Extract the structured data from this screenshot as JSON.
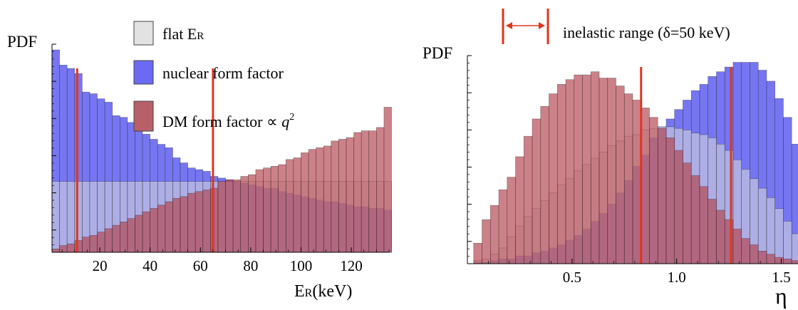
{
  "chart_data": [
    {
      "type": "bar",
      "panel": "left",
      "ylabel": "PDF",
      "xlabel": "E",
      "xlabel_sub": "R",
      "xlabel_unit": "(keV)",
      "xlim": [
        1,
        135
      ],
      "xticks": [
        20,
        40,
        60,
        80,
        100,
        120
      ],
      "ylim": [
        0,
        1.2
      ],
      "bin_width": 3,
      "bins_start": 1,
      "legend": {
        "placement": "top-center",
        "entries": [
          {
            "key": "flat",
            "label": "flat E",
            "sub": "R",
            "sup": "",
            "color": "#e2e2e2"
          },
          {
            "key": "nuclear",
            "label": "nuclear form factor",
            "sub": "",
            "sup": "",
            "color": "#6a6af5"
          },
          {
            "key": "dm",
            "label": "DM form factor ∝ ",
            "var": "q",
            "sup": "2",
            "sub": "",
            "color": "#b86068"
          }
        ]
      },
      "vlines": [
        11,
        65
      ],
      "series": [
        {
          "key": "flat",
          "values": [
            0.42,
            0.42,
            0.42,
            0.42,
            0.42,
            0.42,
            0.42,
            0.42,
            0.42,
            0.42,
            0.42,
            0.42,
            0.42,
            0.42,
            0.42,
            0.42,
            0.42,
            0.42,
            0.42,
            0.42,
            0.42,
            0.42,
            0.42,
            0.42,
            0.42,
            0.42,
            0.42,
            0.42,
            0.42,
            0.42,
            0.42,
            0.42,
            0.42,
            0.42,
            0.42,
            0.42,
            0.42,
            0.42,
            0.42,
            0.42,
            0.42,
            0.42,
            0.42,
            0.42,
            0.42
          ]
        },
        {
          "key": "nuclear",
          "values": [
            1.2,
            1.11,
            1.09,
            1.06,
            0.95,
            0.94,
            0.91,
            0.89,
            0.81,
            0.8,
            0.77,
            0.73,
            0.7,
            0.67,
            0.64,
            0.62,
            0.56,
            0.53,
            0.5,
            0.49,
            0.48,
            0.45,
            0.44,
            0.43,
            0.42,
            0.41,
            0.4,
            0.39,
            0.38,
            0.38,
            0.36,
            0.35,
            0.34,
            0.33,
            0.32,
            0.31,
            0.3,
            0.3,
            0.29,
            0.28,
            0.27,
            0.27,
            0.26,
            0.26,
            0.25
          ]
        },
        {
          "key": "dm",
          "values": [
            0.02,
            0.04,
            0.05,
            0.07,
            0.09,
            0.1,
            0.12,
            0.14,
            0.16,
            0.18,
            0.2,
            0.22,
            0.24,
            0.26,
            0.28,
            0.3,
            0.32,
            0.33,
            0.35,
            0.36,
            0.37,
            0.38,
            0.42,
            0.43,
            0.43,
            0.45,
            0.46,
            0.49,
            0.5,
            0.51,
            0.52,
            0.55,
            0.56,
            0.59,
            0.61,
            0.62,
            0.63,
            0.66,
            0.67,
            0.68,
            0.71,
            0.72,
            0.72,
            0.74,
            0.86
          ]
        }
      ]
    },
    {
      "type": "bar",
      "panel": "right",
      "ylabel": "PDF",
      "xlabel": "η",
      "xlim": [
        0,
        1.58
      ],
      "xticks": [
        0.5,
        1.0,
        1.5
      ],
      "xtick_labels": [
        "0.5",
        "1.0",
        "1.5"
      ],
      "ylim": [
        0,
        1.35
      ],
      "bin_width": 0.04,
      "bins_start": 0.03,
      "annotation": "inelastic range (δ=50 keV)",
      "inelastic_range": [
        0.17,
        0.38
      ],
      "vlines": [
        0.83,
        1.26
      ],
      "series": [
        {
          "key": "flat",
          "values": [
            0.02,
            0.03,
            0.06,
            0.1,
            0.17,
            0.24,
            0.3,
            0.35,
            0.4,
            0.45,
            0.5,
            0.54,
            0.59,
            0.63,
            0.67,
            0.71,
            0.75,
            0.78,
            0.81,
            0.82,
            0.85,
            0.86,
            0.87,
            0.87,
            0.86,
            0.85,
            0.83,
            0.82,
            0.8,
            0.76,
            0.72,
            0.66,
            0.6,
            0.54,
            0.48,
            0.42,
            0.35,
            0.27,
            0.19,
            0.1
          ]
        },
        {
          "key": "nuclear",
          "values": [
            0.01,
            0.01,
            0.02,
            0.03,
            0.03,
            0.05,
            0.05,
            0.07,
            0.08,
            0.1,
            0.12,
            0.15,
            0.18,
            0.22,
            0.27,
            0.32,
            0.38,
            0.45,
            0.53,
            0.62,
            0.69,
            0.8,
            0.87,
            0.92,
            0.98,
            1.04,
            1.1,
            1.14,
            1.19,
            1.22,
            1.25,
            1.28,
            1.28,
            1.28,
            1.23,
            1.16,
            1.05,
            0.93,
            0.76,
            0.58
          ]
        },
        {
          "key": "dm",
          "values": [
            0.13,
            0.28,
            0.37,
            0.47,
            0.55,
            0.68,
            0.81,
            0.92,
            1.0,
            1.08,
            1.14,
            1.17,
            1.2,
            1.2,
            1.22,
            1.18,
            1.18,
            1.13,
            1.08,
            1.04,
            0.99,
            0.93,
            0.86,
            0.8,
            0.72,
            0.64,
            0.56,
            0.49,
            0.41,
            0.34,
            0.28,
            0.22,
            0.16,
            0.12,
            0.08,
            0.06,
            0.04,
            0.03,
            0.02,
            0.01
          ]
        }
      ]
    }
  ]
}
